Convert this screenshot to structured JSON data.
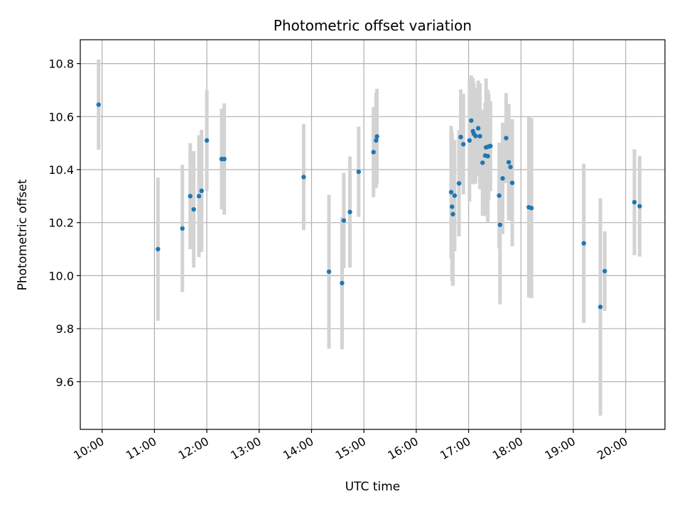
{
  "chart_data": {
    "type": "scatter",
    "title": "Photometric offset variation",
    "xlabel": "UTC time",
    "ylabel": "Photometric offset",
    "grid": true,
    "xlim": [
      "09:35",
      "20:45"
    ],
    "ylim": [
      9.42,
      10.89
    ],
    "x_ticks": [
      "10:00",
      "11:00",
      "12:00",
      "13:00",
      "14:00",
      "15:00",
      "16:00",
      "17:00",
      "18:00",
      "19:00",
      "20:00"
    ],
    "y_ticks": [
      "9.6",
      "9.8",
      "10.0",
      "10.2",
      "10.4",
      "10.6",
      "10.8"
    ],
    "point_color": "#1f77b4",
    "errorbar_color": "#d3d3d3",
    "series": [
      {
        "x": [
          "09:56",
          "11:04",
          "11:32",
          "11:41",
          "11:45",
          "11:51",
          "11:54",
          "12:00",
          "12:17",
          "12:20",
          "13:51",
          "14:20",
          "14:35",
          "14:37",
          "14:44",
          "14:54",
          "15:11",
          "15:14",
          "15:15",
          "16:40",
          "16:41",
          "16:42",
          "16:44",
          "16:49",
          "16:51",
          "16:54",
          "17:01",
          "17:03",
          "17:05",
          "17:06",
          "17:08",
          "17:11",
          "17:13",
          "17:16",
          "17:19",
          "17:20",
          "17:22",
          "17:23",
          "17:25",
          "17:35",
          "17:36",
          "17:39",
          "17:43",
          "17:46",
          "17:48",
          "17:50",
          "18:09",
          "18:12",
          "19:12",
          "19:31",
          "19:36",
          "20:10",
          "20:16"
        ],
        "y": [
          10.645,
          10.1,
          10.178,
          10.3,
          10.25,
          10.3,
          10.32,
          10.51,
          10.44,
          10.44,
          10.372,
          10.015,
          9.972,
          10.208,
          10.24,
          10.392,
          10.466,
          10.51,
          10.525,
          10.315,
          10.26,
          10.232,
          10.302,
          10.348,
          10.523,
          10.496,
          10.51,
          10.585,
          10.545,
          10.535,
          10.527,
          10.556,
          10.526,
          10.426,
          10.453,
          10.484,
          10.451,
          10.487,
          10.489,
          10.302,
          10.192,
          10.367,
          10.519,
          10.428,
          10.41,
          10.35,
          10.258,
          10.255,
          10.122,
          9.882,
          10.017,
          10.277,
          10.262
        ],
        "yerr": [
          0.17,
          0.27,
          0.24,
          0.2,
          0.22,
          0.23,
          0.23,
          0.19,
          0.19,
          0.21,
          0.2,
          0.29,
          0.25,
          0.18,
          0.21,
          0.17,
          0.17,
          0.18,
          0.18,
          0.25,
          0.28,
          0.27,
          0.21,
          0.2,
          0.18,
          0.19,
          0.23,
          0.17,
          0.2,
          0.19,
          0.18,
          0.18,
          0.2,
          0.2,
          0.2,
          0.26,
          0.25,
          0.2,
          0.17,
          0.2,
          0.3,
          0.21,
          0.17,
          0.22,
          0.17,
          0.24,
          0.34,
          0.34,
          0.3,
          0.41,
          0.15,
          0.2,
          0.19
        ]
      }
    ]
  }
}
